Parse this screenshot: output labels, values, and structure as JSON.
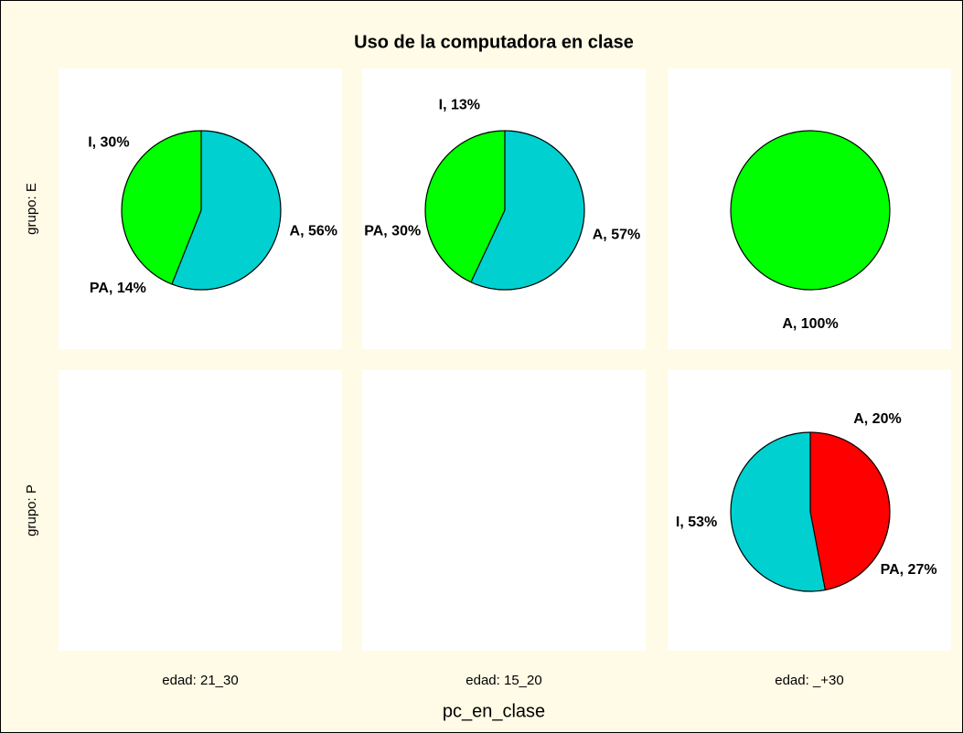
{
  "chart_data": {
    "type": "pie",
    "title": "Uso de la computadora en clase",
    "xlabel": "pc_en_clase",
    "row_labels": [
      "grupo: E",
      "grupo: P"
    ],
    "col_labels": [
      "edad: 21_30",
      "edad: 15_20",
      "edad: _+30"
    ],
    "panels": [
      [
        {
          "categories": [
            "A",
            "PA",
            "I"
          ],
          "values": [
            56,
            14,
            30
          ],
          "value_labels": [
            "A, 56%",
            "PA, 14%",
            "I, 30%"
          ],
          "colors": [
            "#00d0d0",
            "#00ff00",
            "#00ff00"
          ]
        },
        {
          "categories": [
            "A",
            "PA",
            "I"
          ],
          "values": [
            57,
            30,
            13
          ],
          "value_labels": [
            "A, 57%",
            "PA, 30%",
            "I, 13%"
          ],
          "colors": [
            "#00d0d0",
            "#00ff00",
            "#00ff00"
          ]
        },
        {
          "categories": [
            "A"
          ],
          "values": [
            100
          ],
          "value_labels": [
            "A, 100%"
          ],
          "colors": [
            "#00ff00"
          ]
        }
      ],
      [
        null,
        null,
        {
          "categories": [
            "A",
            "PA",
            "I"
          ],
          "values": [
            20,
            27,
            53
          ],
          "value_labels": [
            "A, 20%",
            "PA, 27%",
            "I, 53%"
          ],
          "colors": [
            "#ff0000",
            "#ff0000",
            "#00d0d0"
          ]
        }
      ]
    ]
  }
}
